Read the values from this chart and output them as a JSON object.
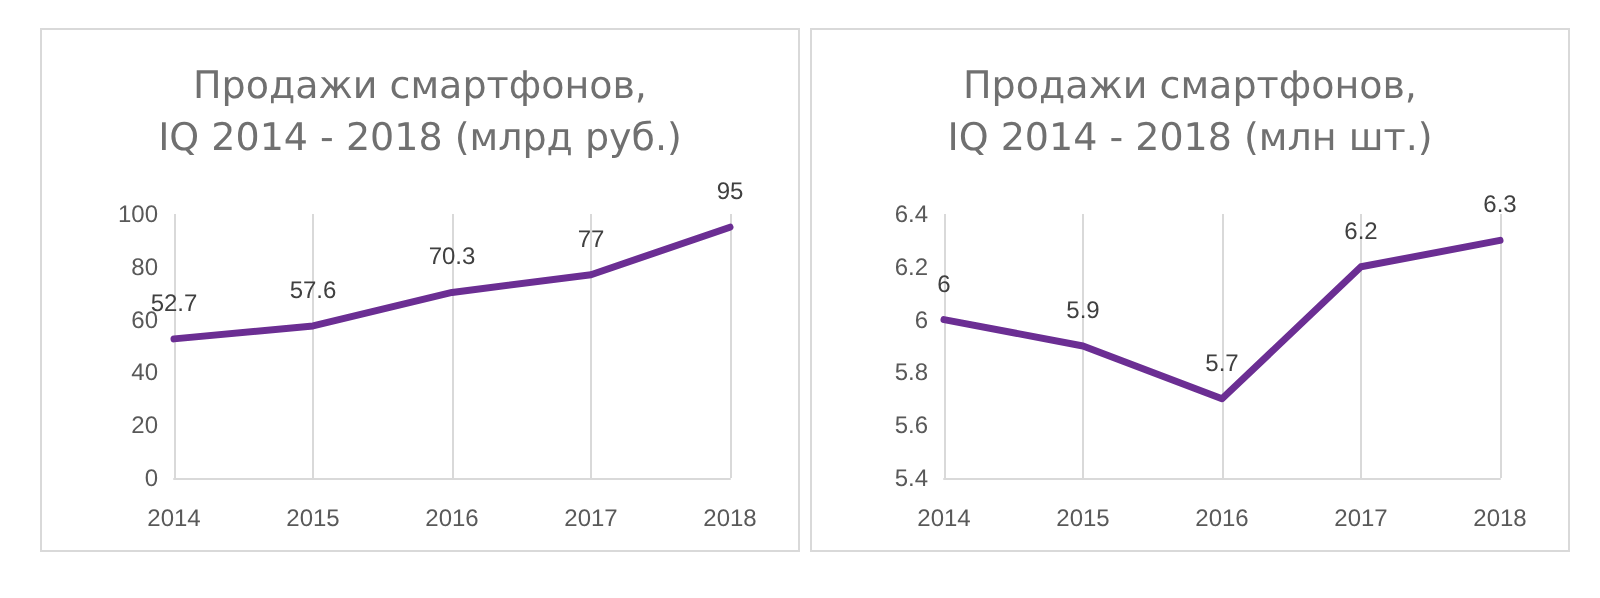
{
  "chart_data": [
    {
      "type": "line",
      "title": "Продажи смартфонов,\nIQ 2014 - 2018 (млрд руб.)",
      "categories": [
        "2014",
        "2015",
        "2016",
        "2017",
        "2018"
      ],
      "series": [
        {
          "color": "#6b2e93",
          "values": [
            52.7,
            57.6,
            70.3,
            77,
            95
          ]
        }
      ],
      "ylim": [
        0,
        100
      ],
      "yticks": [
        0,
        20,
        40,
        60,
        80,
        100
      ],
      "grid": "x",
      "marker": "none",
      "line_style": "solid",
      "data_labels": true
    },
    {
      "type": "line",
      "title": "Продажи смартфонов,\nIQ 2014 - 2018 (млн шт.)",
      "categories": [
        "2014",
        "2015",
        "2016",
        "2017",
        "2018"
      ],
      "series": [
        {
          "color": "#6b2e93",
          "values": [
            6,
            5.9,
            5.7,
            6.2,
            6.3
          ]
        }
      ],
      "ylim": [
        5.4,
        6.4
      ],
      "yticks": [
        5.4,
        5.6,
        5.8,
        6,
        6.2,
        6.4
      ],
      "grid": "x",
      "marker": "none",
      "line_style": "solid",
      "data_labels": true
    }
  ]
}
